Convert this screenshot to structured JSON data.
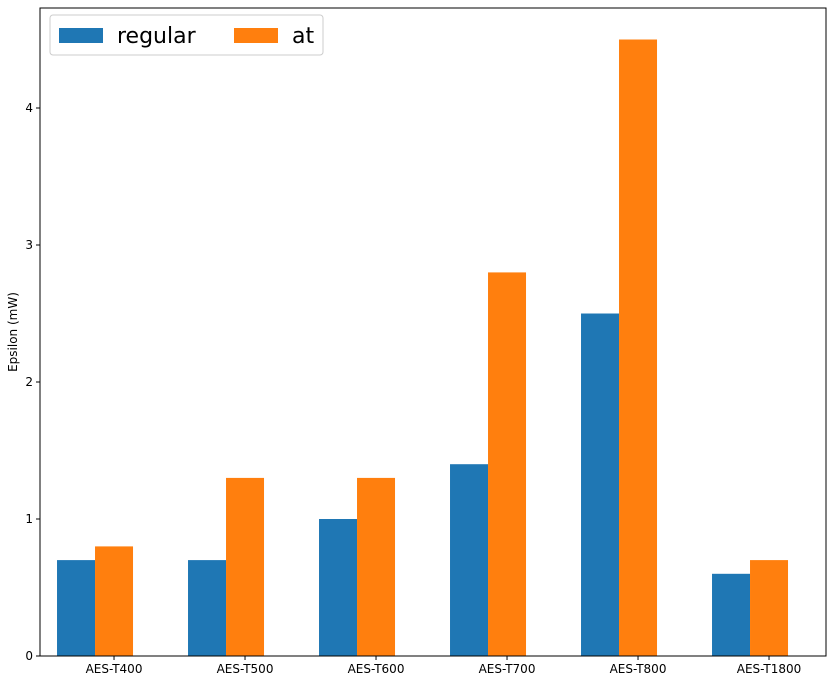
{
  "chart_data": {
    "type": "bar",
    "title": "",
    "xlabel": "",
    "ylabel": "Epsilon (mW)",
    "categories": [
      "AES-T400",
      "AES-T500",
      "AES-T600",
      "AES-T700",
      "AES-T800",
      "AES-T1800"
    ],
    "series": [
      {
        "name": "regular",
        "color": "#1f77b4",
        "values": [
          0.7,
          0.7,
          1.0,
          1.4,
          2.5,
          0.6
        ]
      },
      {
        "name": "at",
        "color": "#ff7f0e",
        "values": [
          0.8,
          1.3,
          1.3,
          2.8,
          4.5,
          0.7
        ]
      }
    ],
    "ylim": [
      0,
      4.73
    ],
    "yticks": [
      0,
      1,
      2,
      3,
      4
    ],
    "grid": false,
    "legend": {
      "placement": "top-left",
      "columns": 2
    }
  }
}
